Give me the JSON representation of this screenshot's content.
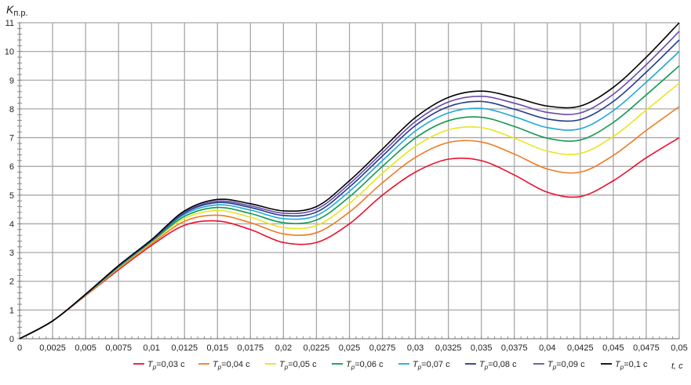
{
  "chart_data": {
    "type": "line",
    "title": "",
    "ylabel_main": "K",
    "ylabel_sub": "п.р.",
    "xlabel": "t, c",
    "xlim": [
      0,
      0.05
    ],
    "ylim": [
      0,
      11
    ],
    "grid": true,
    "legend_position": "bottom",
    "x_tick_labels": [
      "0",
      "0,0025",
      "0,005",
      "0,0075",
      "0,01",
      "0,0125",
      "0,015",
      "0,0175",
      "0,02",
      "0,0225",
      "0,025",
      "0,0275",
      "0,03",
      "0,0325",
      "0,035",
      "0,0375",
      "0,04",
      "0,0425",
      "0,045",
      "0,0475",
      "0,05"
    ],
    "y_tick_labels": [
      "0",
      "1",
      "2",
      "3",
      "4",
      "5",
      "6",
      "7",
      "8",
      "9",
      "10",
      "11"
    ],
    "x": [
      0,
      0.0025,
      0.005,
      0.0075,
      0.01,
      0.0125,
      0.015,
      0.0175,
      0.02,
      0.0225,
      0.025,
      0.0275,
      0.03,
      0.0325,
      0.035,
      0.0375,
      0.04,
      0.0425,
      0.045,
      0.0475,
      0.05
    ],
    "series": [
      {
        "name_var": "T",
        "name_sub": "p",
        "name_val": "=0,03 c",
        "color": "#e8112d",
        "values": [
          0,
          0.62,
          1.5,
          2.4,
          3.25,
          3.95,
          4.1,
          3.8,
          3.35,
          3.35,
          4.0,
          5.0,
          5.8,
          6.25,
          6.2,
          5.7,
          5.1,
          4.95,
          5.5,
          6.3,
          7.0
        ]
      },
      {
        "name_var": "T",
        "name_sub": "p",
        "name_val": "=0,04 c",
        "color": "#f07a22",
        "values": [
          0,
          0.62,
          1.51,
          2.44,
          3.3,
          4.09,
          4.3,
          4.04,
          3.65,
          3.69,
          4.41,
          5.43,
          6.31,
          6.83,
          6.85,
          6.43,
          5.91,
          5.8,
          6.38,
          7.25,
          8.08
        ]
      },
      {
        "name_var": "T",
        "name_sub": "p",
        "name_val": "=0,05 c",
        "color": "#e6e620",
        "values": [
          0,
          0.62,
          1.52,
          2.47,
          3.35,
          4.19,
          4.46,
          4.23,
          3.87,
          3.94,
          4.71,
          5.76,
          6.7,
          7.27,
          7.35,
          6.98,
          6.53,
          6.45,
          7.04,
          7.96,
          8.9
        ]
      },
      {
        "name_var": "T",
        "name_sub": "p",
        "name_val": "=0,06 c",
        "color": "#109a50",
        "values": [
          0,
          0.62,
          1.53,
          2.49,
          3.38,
          4.26,
          4.57,
          4.36,
          4.04,
          4.13,
          4.94,
          6.0,
          6.99,
          7.59,
          7.71,
          7.39,
          6.98,
          6.92,
          7.53,
          8.49,
          9.5
        ]
      },
      {
        "name_var": "T",
        "name_sub": "p",
        "name_val": "=0,07 c",
        "color": "#20a8d8",
        "values": [
          0,
          0.62,
          1.54,
          2.51,
          3.4,
          4.33,
          4.66,
          4.48,
          4.18,
          4.29,
          5.13,
          6.2,
          7.23,
          7.86,
          8.02,
          7.73,
          7.35,
          7.31,
          7.94,
          8.93,
          10.0
        ]
      },
      {
        "name_var": "T",
        "name_sub": "p",
        "name_val": "=0,08 c",
        "color": "#203a90",
        "values": [
          0,
          0.62,
          1.54,
          2.53,
          3.42,
          4.38,
          4.74,
          4.57,
          4.29,
          4.41,
          5.28,
          6.36,
          7.42,
          8.08,
          8.26,
          7.99,
          7.65,
          7.63,
          8.26,
          9.28,
          10.4
        ]
      },
      {
        "name_var": "T",
        "name_sub": "p",
        "name_val": "=0,09 c",
        "color": "#6a4aa8",
        "values": [
          0,
          0.62,
          1.55,
          2.54,
          3.44,
          4.41,
          4.79,
          4.63,
          4.37,
          4.51,
          5.39,
          6.48,
          7.56,
          8.24,
          8.44,
          8.2,
          7.88,
          7.86,
          8.51,
          9.54,
          10.7
        ]
      },
      {
        "name_var": "T",
        "name_sub": "p",
        "name_val": "=0,1 c",
        "color": "#000000",
        "values": [
          0,
          0.62,
          1.55,
          2.55,
          3.45,
          4.45,
          4.85,
          4.7,
          4.45,
          4.6,
          5.5,
          6.6,
          7.7,
          8.4,
          8.62,
          8.4,
          8.1,
          8.1,
          8.75,
          9.8,
          11.0
        ]
      }
    ]
  }
}
